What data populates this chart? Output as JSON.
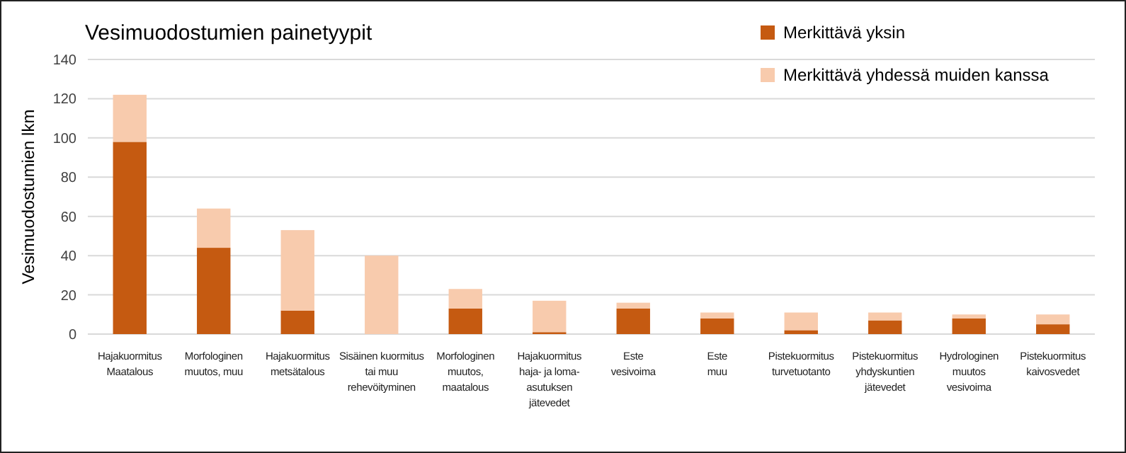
{
  "chart_data": {
    "type": "bar",
    "title": "Vesimuodostumien painetyypit",
    "ylabel": "Vesimuodostumien lkm",
    "categories": [
      "Hajakuormitus\nMaatalous",
      "Morfologinen\nmuutos, muu",
      "Hajakuormitus\nmetsätalous",
      "Sisäinen kuormitus\ntai  muu\nrehevöityminen",
      "Morfologinen\nmuutos,\nmaatalous",
      "Hajakuormitus\nhaja- ja loma-\nasutuksen\njätevedet",
      "Este\nvesivoima",
      "Este\nmuu",
      "Pistekuormitus\nturvetuotanto",
      "Pistekuormitus\nyhdyskuntien\njätevedet",
      "Hydrologinen\nmuutos\nvesivoima",
      "Pistekuormitus\nkaivosvedet"
    ],
    "series": [
      {
        "name": "Merkittävä yksin",
        "color": "#c55a11",
        "values": [
          98,
          44,
          12,
          0,
          13,
          1,
          13,
          8,
          2,
          7,
          8,
          5
        ]
      },
      {
        "name": "Merkittävä yhdessä muiden kanssa",
        "color": "#f8cbad",
        "values": [
          24,
          20,
          41,
          40,
          10,
          16,
          3,
          3,
          9,
          4,
          2,
          5
        ]
      }
    ],
    "stacked": true,
    "ylim": [
      0,
      140
    ],
    "yticks": [
      0,
      20,
      40,
      60,
      80,
      100,
      120,
      140
    ],
    "grid": "y",
    "legend": "top right"
  }
}
